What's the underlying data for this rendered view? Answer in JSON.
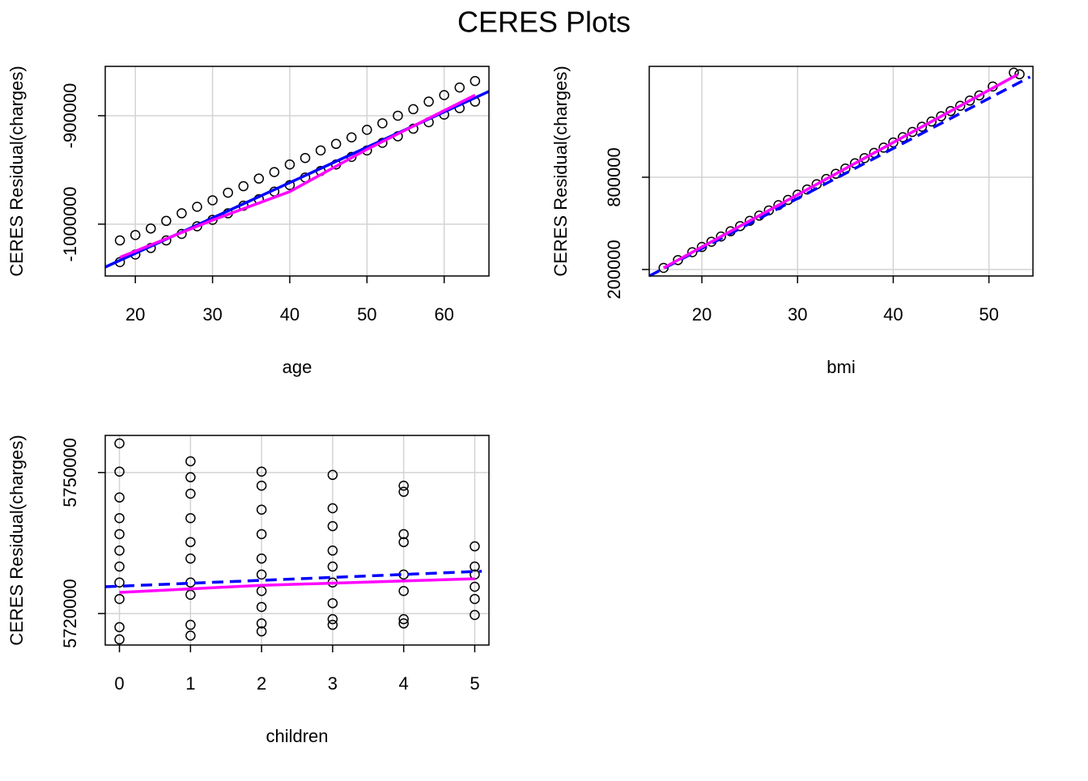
{
  "title": "CERES Plots",
  "chart_data": [
    {
      "type": "scatter",
      "xlabel": "age",
      "ylabel": "CERES Residual(charges)",
      "xlim": [
        16.1,
        65.8
      ],
      "ylim": [
        -1047800,
        -854500
      ],
      "xticks": [
        20,
        30,
        40,
        50,
        60
      ],
      "yticks": [
        -1000000,
        -900000
      ],
      "grid": true,
      "series": [
        {
          "color": "#000000",
          "mode": "markers",
          "x": [
            18,
            18,
            20,
            20,
            22,
            22,
            24,
            24,
            26,
            26,
            28,
            28,
            30,
            30,
            32,
            32,
            34,
            34,
            36,
            36,
            38,
            38,
            40,
            40,
            42,
            42,
            44,
            44,
            46,
            46,
            48,
            48,
            50,
            50,
            52,
            52,
            54,
            54,
            56,
            56,
            58,
            58,
            60,
            60,
            62,
            62,
            64,
            64
          ],
          "values": [
            -1035000,
            -1015000,
            -1028000,
            -1010000,
            -1022000,
            -1004000,
            -1015000,
            -997000,
            -1009000,
            -990000,
            -1002000,
            -984000,
            -996000,
            -978000,
            -990000,
            -971000,
            -983000,
            -965000,
            -977000,
            -958000,
            -970000,
            -952000,
            -964000,
            -945000,
            -957000,
            -939000,
            -951000,
            -932000,
            -945000,
            -926000,
            -938000,
            -920000,
            -932000,
            -913000,
            -925000,
            -907000,
            -919000,
            -900000,
            -912000,
            -894000,
            -906000,
            -887000,
            -899000,
            -881000,
            -893000,
            -874000,
            -887000,
            -868000
          ]
        },
        {
          "color": "#0000ff",
          "mode": "lines",
          "dashed": false,
          "x": [
            16.1,
            65.8
          ],
          "values": [
            -1039600,
            -877600
          ]
        },
        {
          "color": "#ff00ff",
          "mode": "lines",
          "dashed": false,
          "x": [
            18,
            30,
            40,
            50,
            64
          ],
          "values": [
            -1030600,
            -996300,
            -970000,
            -931000,
            -881000
          ]
        }
      ]
    },
    {
      "type": "scatter",
      "xlabel": "bmi",
      "ylabel": "CERES Residual(charges)",
      "xlim": [
        14.5,
        54.6
      ],
      "ylim": [
        157900,
        1521000
      ],
      "xticks": [
        20,
        30,
        40,
        50
      ],
      "yticks": [
        200000,
        800000
      ],
      "grid": true,
      "series": [
        {
          "color": "#000000",
          "mode": "markers",
          "x": [
            16,
            17.5,
            19,
            20,
            21,
            22,
            23,
            24,
            25,
            26,
            27,
            28,
            29,
            30,
            31,
            32,
            33,
            34,
            35,
            36,
            37,
            38,
            39,
            40,
            41,
            42,
            43,
            44,
            45,
            46,
            47,
            48,
            49,
            50.4,
            52.6,
            53.2
          ],
          "values": [
            210500,
            261500,
            312500,
            346500,
            380500,
            414500,
            448500,
            482500,
            516500,
            550500,
            584500,
            618500,
            652500,
            686500,
            720500,
            754500,
            788500,
            822500,
            856500,
            890500,
            924500,
            958500,
            992500,
            1026500,
            1060500,
            1094500,
            1128500,
            1162500,
            1196500,
            1230500,
            1264500,
            1298500,
            1332500,
            1390000,
            1480000,
            1470000
          ]
        },
        {
          "color": "#0000ff",
          "mode": "lines",
          "dashed": true,
          "x": [
            14.5,
            54.3
          ],
          "values": [
            157900,
            1452600
          ]
        },
        {
          "color": "#ff00ff",
          "mode": "lines",
          "dashed": false,
          "x": [
            16,
            53
          ],
          "values": [
            210500,
            1468000
          ]
        }
      ]
    },
    {
      "type": "scatter",
      "xlabel": "children",
      "ylabel": "CERES Residual(charges)",
      "xlim": [
        -0.2,
        5.2
      ],
      "ylim": [
        5713300,
        5757900
      ],
      "xticks": [
        0,
        1,
        2,
        3,
        4,
        5
      ],
      "yticks": [
        5720000,
        5750000
      ],
      "grid": true,
      "series": [
        {
          "color": "#000000",
          "mode": "markers",
          "x": [
            0,
            0,
            0,
            0,
            0,
            0,
            0,
            0,
            0,
            0,
            0,
            1,
            1,
            1,
            1,
            1,
            1,
            1,
            1,
            1,
            1,
            2,
            2,
            2,
            2,
            2,
            2,
            2,
            2,
            2,
            2,
            3,
            3,
            3,
            3,
            3,
            3,
            3,
            3,
            3,
            4,
            4,
            4,
            4,
            4,
            4,
            4,
            4,
            5,
            5,
            5,
            5,
            5,
            5
          ],
          "values": [
            5756200,
            5750200,
            5744700,
            5740300,
            5736900,
            5733400,
            5730000,
            5726600,
            5723100,
            5717100,
            5714500,
            5752400,
            5749000,
            5745500,
            5740300,
            5735200,
            5731700,
            5726600,
            5724000,
            5717600,
            5715300,
            5750200,
            5747200,
            5742100,
            5736900,
            5731700,
            5728300,
            5724800,
            5721400,
            5717900,
            5716200,
            5749500,
            5742400,
            5738600,
            5733400,
            5730000,
            5726600,
            5722200,
            5718800,
            5717600,
            5747200,
            5745900,
            5736900,
            5735200,
            5728300,
            5724800,
            5718800,
            5717900,
            5734300,
            5730000,
            5728300,
            5725700,
            5723100,
            5719700
          ]
        },
        {
          "color": "#0000ff",
          "mode": "lines",
          "dashed": true,
          "x": [
            -0.2,
            5.1
          ],
          "values": [
            5725700,
            5729000
          ]
        },
        {
          "color": "#ff00ff",
          "mode": "lines",
          "dashed": false,
          "x": [
            0,
            2,
            5
          ],
          "values": [
            5724500,
            5726000,
            5727400
          ]
        }
      ]
    }
  ]
}
